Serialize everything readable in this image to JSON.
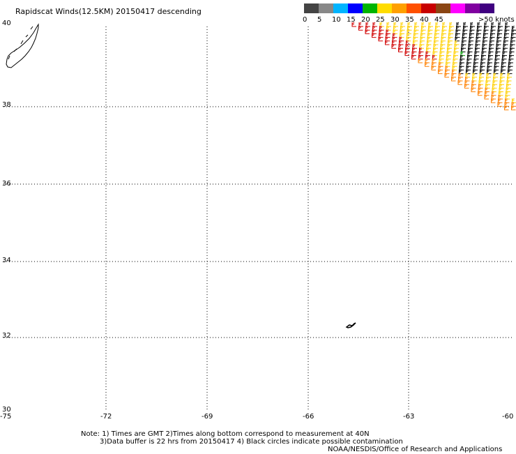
{
  "title": "Rapidscat Winds(12.5KM) 20150417 descending",
  "legend": {
    "segments": [
      {
        "label": "0",
        "color": "#444444"
      },
      {
        "label": "5",
        "color": "#888888"
      },
      {
        "label": "10",
        "color": "#00b4ff"
      },
      {
        "label": "15",
        "color": "#0000ff"
      },
      {
        "label": "20",
        "color": "#00b400"
      },
      {
        "label": "25",
        "color": "#ffdc00"
      },
      {
        "label": "30",
        "color": "#ffa000"
      },
      {
        "label": "35",
        "color": "#ff5000"
      },
      {
        "label": "40",
        "color": "#c80000"
      },
      {
        "label": "45",
        "color": "#8b4513"
      },
      {
        "label": "",
        "color": "#ff00ff"
      },
      {
        "label": "",
        "color": "#8000a0"
      },
      {
        "label": "",
        "color": "#400080"
      }
    ],
    "end_label": ">50 knots"
  },
  "map": {
    "lat_range": [
      30,
      40
    ],
    "lon_range": [
      -75,
      -60
    ],
    "lat_ticks": [
      "40",
      "38",
      "36",
      "34",
      "32",
      "30"
    ],
    "lon_ticks": [
      "-75",
      "-72",
      "-69",
      "-66",
      "-63",
      "-60"
    ]
  },
  "notes": {
    "line1": "Note: 1) Times are GMT 2)Times along bottom correspond to measurement at 40N",
    "line2": "3)Data buffer is 22 hrs from 20150417 4) Black circles indicate possible contamination",
    "credit": "NOAA/NESDIS/Office of Research and Applications"
  }
}
